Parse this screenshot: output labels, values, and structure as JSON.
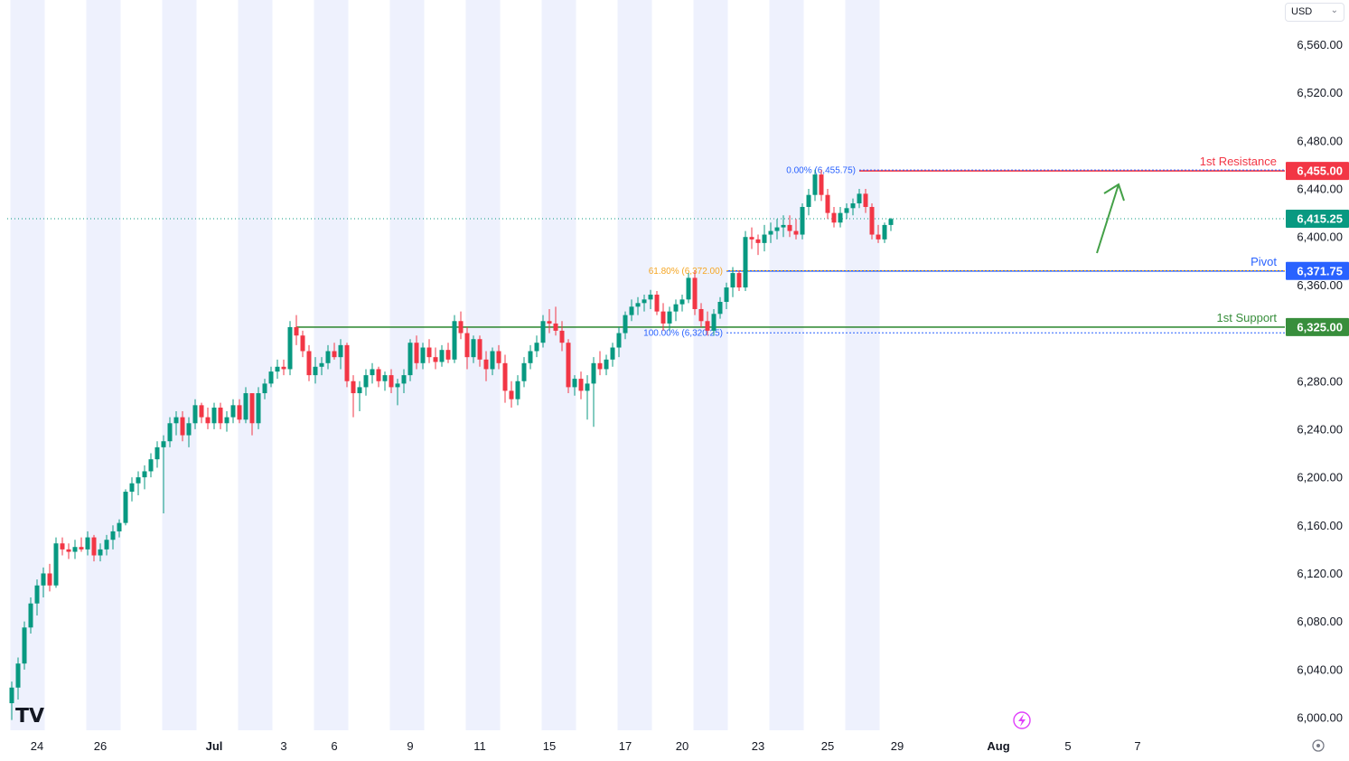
{
  "currency_selector": {
    "label": "USD",
    "icon": "chevron-down-icon"
  },
  "chart_data": {
    "type": "candlestick",
    "title": "",
    "ylim": [
      5995,
      6580
    ],
    "y_ticks": [
      "6,560.00",
      "6,520.00",
      "6,480.00",
      "6,440.00",
      "6,400.00",
      "6,360.00",
      "6,280.00",
      "6,240.00",
      "6,200.00",
      "6,160.00",
      "6,120.00",
      "6,080.00",
      "6,040.00",
      "6,000.00"
    ],
    "x_ticks": [
      {
        "label": "24",
        "bar": 4
      },
      {
        "label": "26",
        "bar": 14
      },
      {
        "label": "Jul",
        "bar": 32
      },
      {
        "label": "3",
        "bar": 43
      },
      {
        "label": "6",
        "bar": 51
      },
      {
        "label": "9",
        "bar": 63
      },
      {
        "label": "11",
        "bar": 74
      },
      {
        "label": "15",
        "bar": 85
      },
      {
        "label": "17",
        "bar": 97
      },
      {
        "label": "20",
        "bar": 106
      },
      {
        "label": "23",
        "bar": 118
      },
      {
        "label": "25",
        "bar": 129
      },
      {
        "label": "29",
        "bar": 140
      },
      {
        "label": "Aug",
        "bar": 156
      },
      {
        "label": "5",
        "bar": 167
      },
      {
        "label": "7",
        "bar": 178
      }
    ],
    "current_price": "6,415.25",
    "levels": [
      {
        "name": "1st Resistance",
        "value": 6455.0,
        "tag": "6,455.00",
        "color": "#f23645",
        "start_bar": 134
      },
      {
        "name": "Pivot",
        "value": 6371.75,
        "tag": "6,371.75",
        "color": "#2962ff",
        "start_bar": 113
      },
      {
        "name": "1st Support",
        "value": 6325.0,
        "tag": "6,325.00",
        "color": "#388e3c",
        "start_bar": 45
      }
    ],
    "fib_labels": [
      {
        "text": "0.00% (6,455.75)",
        "value": 6455.75,
        "color": "#2962ff",
        "start_bar": 115,
        "end_bar": 134
      },
      {
        "text": "61.80% (6,372.00)",
        "value": 6372.0,
        "color": "#f5a623",
        "start_bar": 107,
        "end_bar": 113
      },
      {
        "text": "100.00% (6,320.25)",
        "value": 6320.25,
        "color": "#2962ff",
        "start_bar": 115,
        "end_bar": 113
      }
    ],
    "colors": {
      "up": "#089981",
      "down": "#f23645",
      "session_band": "#eef1fd"
    },
    "candles": [
      [
        6012,
        6030,
        5998,
        6025
      ],
      [
        6025,
        6050,
        6015,
        6045
      ],
      [
        6045,
        6080,
        6040,
        6075
      ],
      [
        6075,
        6100,
        6070,
        6095
      ],
      [
        6095,
        6115,
        6085,
        6110
      ],
      [
        6110,
        6125,
        6100,
        6120
      ],
      [
        6120,
        6128,
        6105,
        6110
      ],
      [
        6110,
        6150,
        6108,
        6145
      ],
      [
        6145,
        6150,
        6135,
        6140
      ],
      [
        6140,
        6145,
        6132,
        6138
      ],
      [
        6138,
        6148,
        6132,
        6142
      ],
      [
        6142,
        6150,
        6138,
        6140
      ],
      [
        6140,
        6155,
        6135,
        6150
      ],
      [
        6150,
        6152,
        6130,
        6135
      ],
      [
        6135,
        6145,
        6130,
        6140
      ],
      [
        6140,
        6152,
        6135,
        6148
      ],
      [
        6148,
        6160,
        6140,
        6155
      ],
      [
        6155,
        6165,
        6150,
        6162
      ],
      [
        6162,
        6190,
        6160,
        6188
      ],
      [
        6188,
        6200,
        6180,
        6195
      ],
      [
        6195,
        6205,
        6185,
        6200
      ],
      [
        6200,
        6210,
        6190,
        6205
      ],
      [
        6205,
        6220,
        6200,
        6215
      ],
      [
        6215,
        6230,
        6208,
        6225
      ],
      [
        6225,
        6235,
        6170,
        6230
      ],
      [
        6230,
        6250,
        6225,
        6245
      ],
      [
        6245,
        6255,
        6235,
        6250
      ],
      [
        6250,
        6255,
        6230,
        6235
      ],
      [
        6235,
        6250,
        6225,
        6245
      ],
      [
        6245,
        6265,
        6240,
        6260
      ],
      [
        6260,
        6262,
        6245,
        6250
      ],
      [
        6250,
        6258,
        6240,
        6245
      ],
      [
        6245,
        6262,
        6240,
        6258
      ],
      [
        6258,
        6262,
        6240,
        6245
      ],
      [
        6245,
        6255,
        6238,
        6250
      ],
      [
        6250,
        6265,
        6245,
        6260
      ],
      [
        6260,
        6265,
        6245,
        6248
      ],
      [
        6248,
        6275,
        6245,
        6270
      ],
      [
        6270,
        6268,
        6235,
        6245
      ],
      [
        6245,
        6275,
        6240,
        6270
      ],
      [
        6270,
        6282,
        6265,
        6278
      ],
      [
        6278,
        6292,
        6275,
        6288
      ],
      [
        6288,
        6298,
        6282,
        6292
      ],
      [
        6292,
        6298,
        6285,
        6290
      ],
      [
        6290,
        6330,
        6285,
        6325
      ],
      [
        6325,
        6335,
        6310,
        6318
      ],
      [
        6318,
        6322,
        6300,
        6305
      ],
      [
        6305,
        6310,
        6280,
        6285
      ],
      [
        6285,
        6300,
        6278,
        6292
      ],
      [
        6292,
        6300,
        6285,
        6295
      ],
      [
        6295,
        6310,
        6290,
        6305
      ],
      [
        6305,
        6312,
        6298,
        6300
      ],
      [
        6300,
        6315,
        6290,
        6310
      ],
      [
        6310,
        6312,
        6275,
        6280
      ],
      [
        6280,
        6285,
        6250,
        6270
      ],
      [
        6270,
        6280,
        6255,
        6275
      ],
      [
        6275,
        6290,
        6268,
        6285
      ],
      [
        6285,
        6295,
        6278,
        6290
      ],
      [
        6290,
        6292,
        6275,
        6280
      ],
      [
        6280,
        6288,
        6272,
        6285
      ],
      [
        6285,
        6290,
        6270,
        6275
      ],
      [
        6275,
        6282,
        6260,
        6278
      ],
      [
        6278,
        6290,
        6270,
        6285
      ],
      [
        6285,
        6315,
        6280,
        6312
      ],
      [
        6312,
        6318,
        6290,
        6295
      ],
      [
        6295,
        6312,
        6290,
        6308
      ],
      [
        6308,
        6315,
        6295,
        6300
      ],
      [
        6300,
        6308,
        6290,
        6296
      ],
      [
        6296,
        6310,
        6292,
        6306
      ],
      [
        6306,
        6312,
        6295,
        6298
      ],
      [
        6298,
        6335,
        6295,
        6330
      ],
      [
        6330,
        6338,
        6315,
        6320
      ],
      [
        6320,
        6325,
        6290,
        6300
      ],
      [
        6300,
        6318,
        6295,
        6315
      ],
      [
        6315,
        6318,
        6292,
        6298
      ],
      [
        6298,
        6305,
        6280,
        6290
      ],
      [
        6290,
        6308,
        6285,
        6305
      ],
      [
        6305,
        6310,
        6290,
        6295
      ],
      [
        6295,
        6302,
        6262,
        6272
      ],
      [
        6272,
        6280,
        6258,
        6265
      ],
      [
        6265,
        6285,
        6260,
        6280
      ],
      [
        6280,
        6300,
        6275,
        6295
      ],
      [
        6295,
        6310,
        6290,
        6305
      ],
      [
        6305,
        6318,
        6300,
        6312
      ],
      [
        6312,
        6335,
        6308,
        6330
      ],
      [
        6330,
        6340,
        6320,
        6328
      ],
      [
        6328,
        6342,
        6318,
        6322
      ],
      [
        6322,
        6330,
        6305,
        6312
      ],
      [
        6312,
        6315,
        6270,
        6275
      ],
      [
        6275,
        6285,
        6268,
        6282
      ],
      [
        6282,
        6288,
        6265,
        6272
      ],
      [
        6272,
        6285,
        6248,
        6278
      ],
      [
        6278,
        6300,
        6242,
        6295
      ],
      [
        6295,
        6305,
        6285,
        6290
      ],
      [
        6290,
        6302,
        6285,
        6298
      ],
      [
        6298,
        6312,
        6292,
        6308
      ],
      [
        6308,
        6325,
        6300,
        6320
      ],
      [
        6320,
        6338,
        6315,
        6335
      ],
      [
        6335,
        6348,
        6330,
        6342
      ],
      [
        6342,
        6350,
        6335,
        6345
      ],
      [
        6345,
        6352,
        6338,
        6348
      ],
      [
        6348,
        6356,
        6340,
        6352
      ],
      [
        6352,
        6355,
        6335,
        6338
      ],
      [
        6338,
        6345,
        6322,
        6328
      ],
      [
        6328,
        6342,
        6322,
        6338
      ],
      [
        6338,
        6348,
        6330,
        6344
      ],
      [
        6344,
        6352,
        6338,
        6348
      ],
      [
        6348,
        6370,
        6345,
        6366
      ],
      [
        6366,
        6372,
        6335,
        6340
      ],
      [
        6340,
        6345,
        6325,
        6330
      ],
      [
        6330,
        6338,
        6318,
        6322
      ],
      [
        6322,
        6340,
        6318,
        6336
      ],
      [
        6336,
        6350,
        6332,
        6346
      ],
      [
        6346,
        6362,
        6340,
        6358
      ],
      [
        6358,
        6375,
        6350,
        6370
      ],
      [
        6370,
        6372,
        6355,
        6358
      ],
      [
        6358,
        6405,
        6355,
        6400
      ],
      [
        6400,
        6408,
        6390,
        6398
      ],
      [
        6398,
        6402,
        6385,
        6395
      ],
      [
        6395,
        6410,
        6388,
        6402
      ],
      [
        6402,
        6412,
        6395,
        6405
      ],
      [
        6405,
        6415,
        6398,
        6408
      ],
      [
        6408,
        6418,
        6400,
        6410
      ],
      [
        6410,
        6418,
        6400,
        6405
      ],
      [
        6405,
        6415,
        6398,
        6402
      ],
      [
        6402,
        6428,
        6398,
        6425
      ],
      [
        6425,
        6440,
        6418,
        6435
      ],
      [
        6435,
        6456,
        6430,
        6452
      ],
      [
        6452,
        6456,
        6430,
        6435
      ],
      [
        6435,
        6440,
        6415,
        6420
      ],
      [
        6420,
        6425,
        6408,
        6412
      ],
      [
        6412,
        6425,
        6408,
        6420
      ],
      [
        6420,
        6428,
        6415,
        6424
      ],
      [
        6424,
        6432,
        6418,
        6428
      ],
      [
        6428,
        6440,
        6424,
        6436
      ],
      [
        6436,
        6440,
        6420,
        6425
      ],
      [
        6425,
        6428,
        6398,
        6402
      ],
      [
        6402,
        6410,
        6395,
        6398
      ],
      [
        6398,
        6412,
        6395,
        6410
      ],
      [
        6410,
        6416,
        6405,
        6415
      ]
    ]
  }
}
